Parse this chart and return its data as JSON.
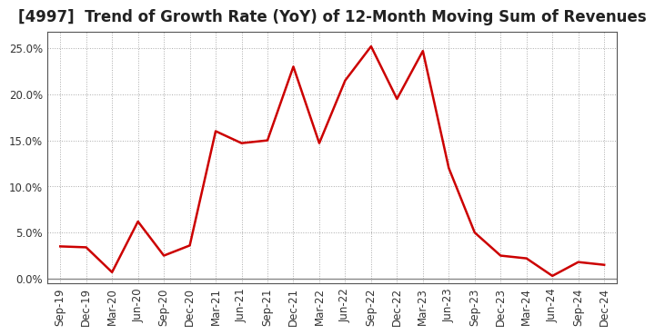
{
  "title": "[4997]  Trend of Growth Rate (YoY) of 12-Month Moving Sum of Revenues",
  "x_labels": [
    "Sep-19",
    "Dec-19",
    "Mar-20",
    "Jun-20",
    "Sep-20",
    "Dec-20",
    "Mar-21",
    "Jun-21",
    "Sep-21",
    "Dec-21",
    "Mar-22",
    "Jun-22",
    "Sep-22",
    "Dec-22",
    "Mar-23",
    "Jun-23",
    "Sep-23",
    "Dec-23",
    "Mar-24",
    "Jun-24",
    "Sep-24",
    "Dec-24"
  ],
  "y_values": [
    0.035,
    0.034,
    0.007,
    0.062,
    0.025,
    0.036,
    0.16,
    0.147,
    0.15,
    0.23,
    0.147,
    0.215,
    0.252,
    0.195,
    0.247,
    0.12,
    0.05,
    0.025,
    0.022,
    0.003,
    0.018,
    0.015
  ],
  "line_color": "#cc0000",
  "background_color": "#ffffff",
  "plot_bg_color": "#ffffff",
  "grid_color": "#aaaaaa",
  "zero_line_color": "#888888",
  "ylim": [
    -0.005,
    0.268
  ],
  "yticks": [
    0.0,
    0.05,
    0.1,
    0.15,
    0.2,
    0.25
  ],
  "title_fontsize": 12,
  "tick_fontsize": 8.5,
  "line_width": 1.8
}
